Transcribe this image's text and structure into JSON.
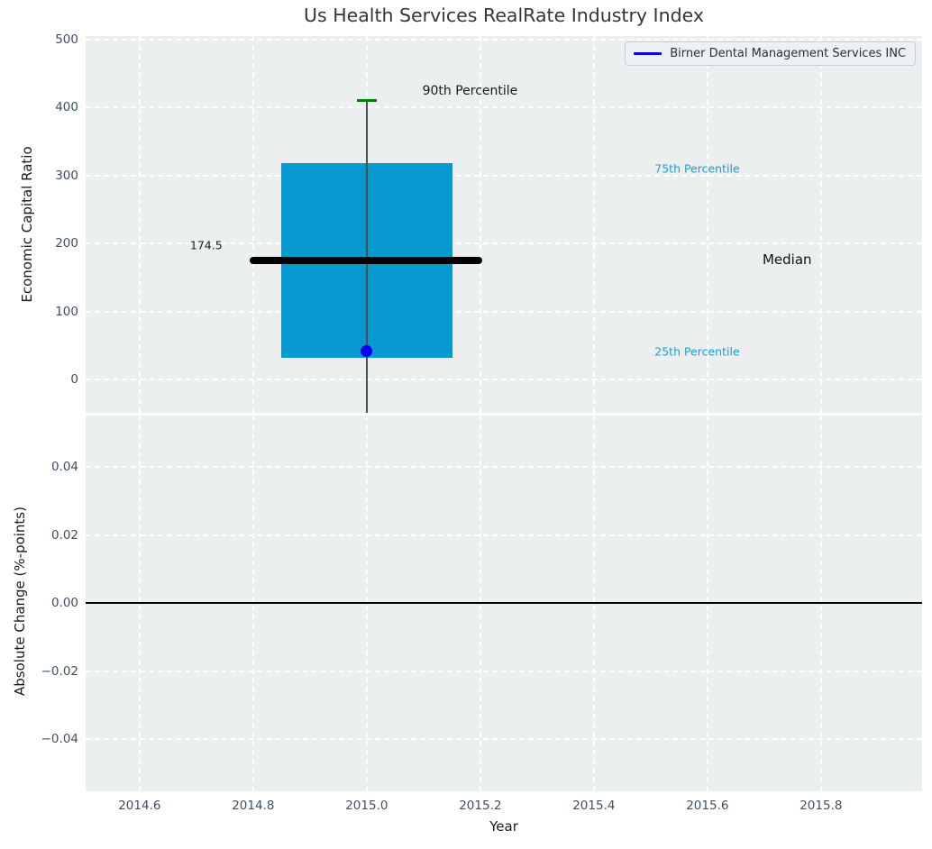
{
  "figure": {
    "title": "Us Health Services RealRate Industry Index"
  },
  "legend": {
    "label": "Birner Dental Management Services INC"
  },
  "colors": {
    "figure_bg": "#ffffff",
    "axes_bg": "#ebeff0",
    "grid": "#ffffff",
    "tick_label": "#3e4e66",
    "title_color": "#31353d",
    "box_fill": "#0699cf",
    "percentile_label": "#1b9ed3",
    "cap_green": "#008000",
    "company_blue": "#0000ee",
    "median_black": "#000000",
    "whisker_gray": "#4d4d4d",
    "zero_line": "#000000"
  },
  "chart_data": [
    {
      "type": "boxplot",
      "title": "Us Health Services RealRate Industry Index",
      "ylabel": "Economic Capital Ratio",
      "xlim": [
        2014.505,
        2015.978
      ],
      "ylim": [
        -49,
        505
      ],
      "xticks": [
        2014.6,
        2014.8,
        2015.0,
        2015.2,
        2015.4,
        2015.6,
        2015.8
      ],
      "xticklabels": [
        "2014.6",
        "2014.8",
        "2015.0",
        "2015.2",
        "2015.4",
        "2015.6",
        "2015.8"
      ],
      "show_xticklabels": false,
      "yticks": [
        0,
        100,
        200,
        300,
        400,
        500
      ],
      "yticklabels": [
        "0",
        "100",
        "200",
        "300",
        "400",
        "500"
      ],
      "grid": "white-dashed",
      "legend_position": "upper right",
      "box": {
        "x_center": 2015.0,
        "box_left": 2014.85,
        "box_right": 2015.151,
        "q1": 32,
        "q3": 318,
        "median": 174.5,
        "median_left": 2014.794,
        "median_right": 2015.203,
        "p90": 410,
        "cap_halfwidth": 0.017,
        "whisker_low_clipped": true
      },
      "company_point": {
        "name": "Birner Dental Management Services INC",
        "x": 2015.0,
        "y": 42
      },
      "annotations": [
        {
          "id": "annotation-90th-percentile",
          "text": "90th Percentile",
          "x": 2015.098,
          "y": 424,
          "color": "#1a1a1a",
          "size": 14
        },
        {
          "id": "annotation-median-value",
          "text": "174.5",
          "x": 2014.689,
          "y": 197,
          "color": "#1a1a1a",
          "size": 12.5
        },
        {
          "id": "annotation-75th-percentile",
          "text": "75th Percentile",
          "x": 2015.507,
          "y": 310,
          "color": "#1b9ed3",
          "size": 12.5
        },
        {
          "id": "annotation-median",
          "text": "Median",
          "x": 2015.697,
          "y": 176,
          "color": "#111111",
          "size": 15
        },
        {
          "id": "annotation-25th-percentile",
          "text": "25th Percentile",
          "x": 2015.507,
          "y": 41,
          "color": "#1b9ed3",
          "size": 12.5
        }
      ]
    },
    {
      "type": "line",
      "ylabel": "Absolute Change (%-points)",
      "xlabel": "Year",
      "xlim": [
        2014.505,
        2015.978
      ],
      "ylim": [
        -0.0554,
        0.0552
      ],
      "xticks": [
        2014.6,
        2014.8,
        2015.0,
        2015.2,
        2015.4,
        2015.6,
        2015.8
      ],
      "xticklabels": [
        "2014.6",
        "2014.8",
        "2015.0",
        "2015.2",
        "2015.4",
        "2015.6",
        "2015.8"
      ],
      "show_xticklabels": true,
      "yticks": [
        0.04,
        0.02,
        0.0,
        -0.02,
        -0.04
      ],
      "yticklabels": [
        "0.04",
        "0.02",
        "0.00",
        "−0.02",
        "−0.04"
      ],
      "grid": "white-dashed",
      "zero_line": 0.0,
      "series": []
    }
  ]
}
